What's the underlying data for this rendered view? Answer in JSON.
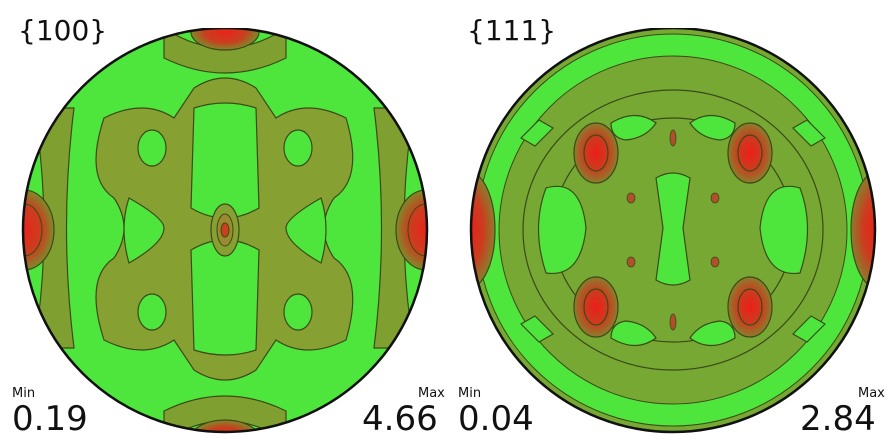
{
  "figures": [
    {
      "plane": "{100}",
      "min_label": "Min",
      "min_value": "0.19",
      "max_label": "Max",
      "max_value": "4.66"
    },
    {
      "plane": "{111}",
      "min_label": "Min",
      "min_value": "0.04",
      "max_label": "Max",
      "max_value": "2.84"
    }
  ],
  "colors": {
    "high": "#e8241c",
    "mid": "#8a9a30",
    "low": "#49e43a",
    "contour": "#3a4a18",
    "outline": "#111111"
  }
}
